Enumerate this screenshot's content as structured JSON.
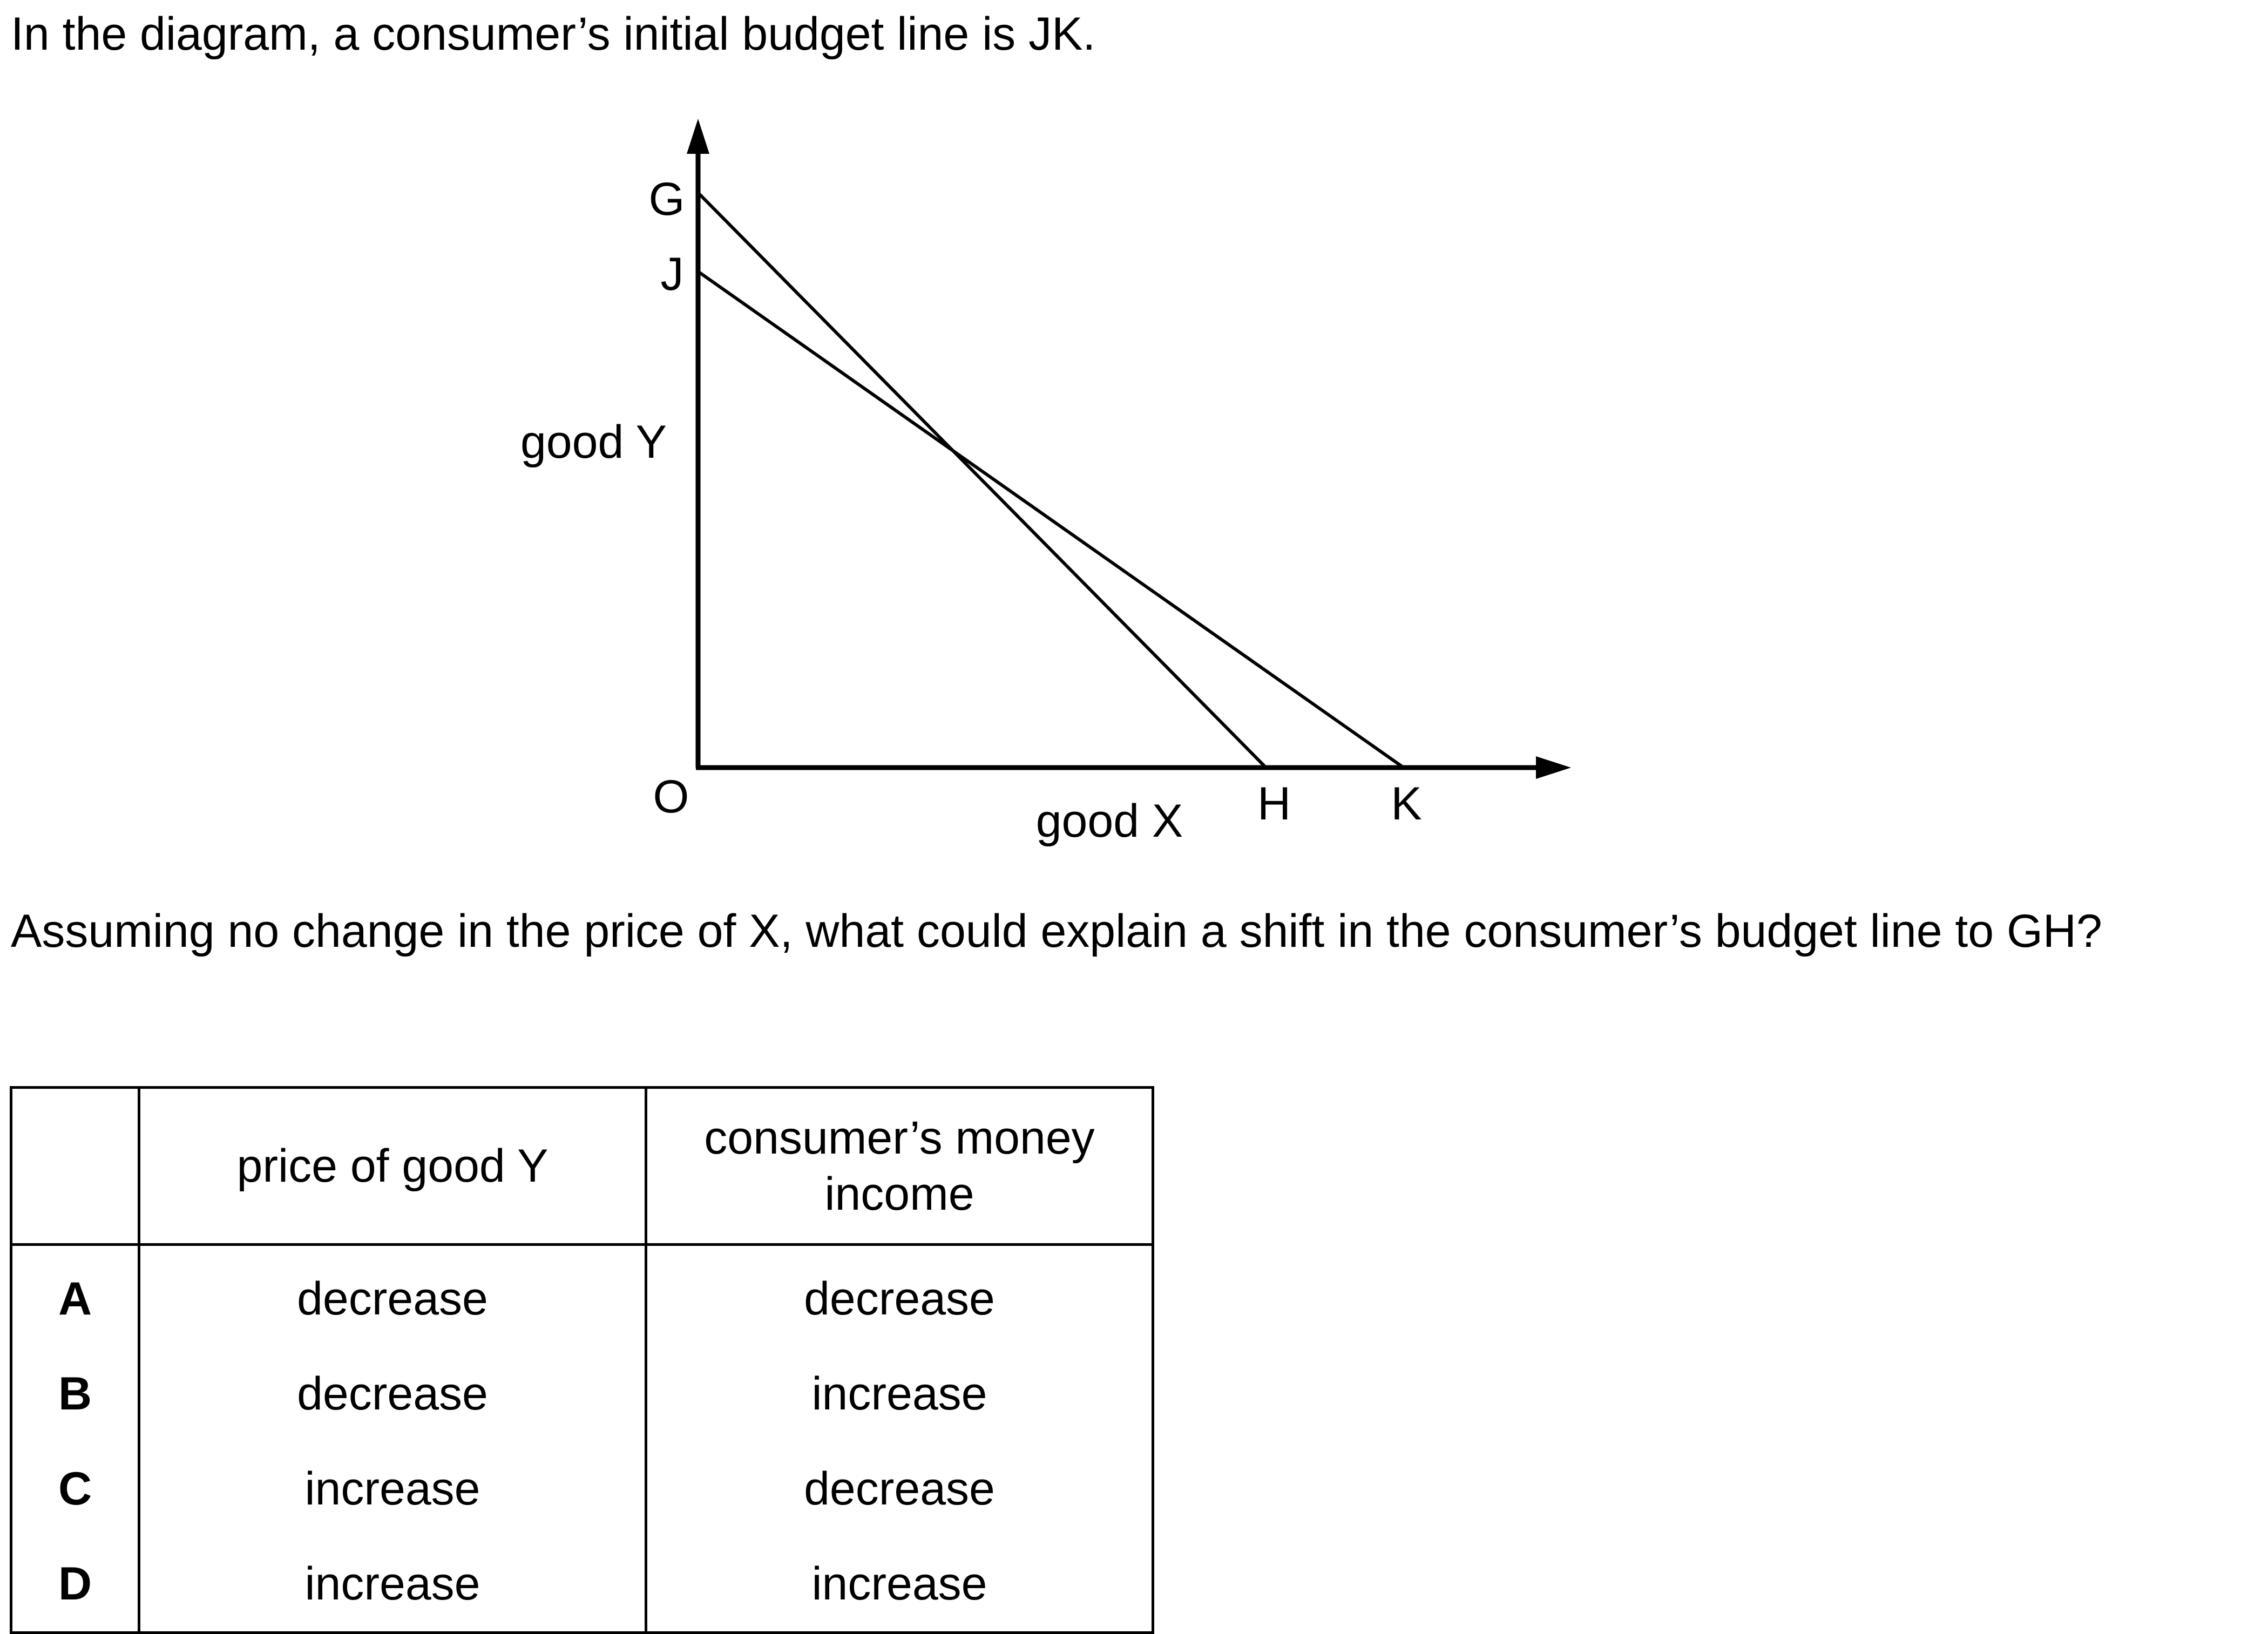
{
  "intro_text": "In the diagram, a consumer’s initial budget line is JK.",
  "diagram": {
    "y_axis_label": "good Y",
    "x_axis_label": "good X",
    "origin_label": "O",
    "point_labels": {
      "G": "G",
      "J": "J",
      "H": "H",
      "K": "K"
    },
    "lines": [
      "JK",
      "GH"
    ]
  },
  "question_text": "Assuming no change in the price of X, what could explain a shift in the consumer’s budget line to GH?",
  "table": {
    "headers": [
      "",
      "price of good Y",
      "consumer’s money income"
    ],
    "rows": [
      {
        "letter": "A",
        "price": "decrease",
        "income": "decrease"
      },
      {
        "letter": "B",
        "price": "decrease",
        "income": "increase"
      },
      {
        "letter": "C",
        "price": "increase",
        "income": "decrease"
      },
      {
        "letter": "D",
        "price": "increase",
        "income": "increase"
      }
    ]
  }
}
